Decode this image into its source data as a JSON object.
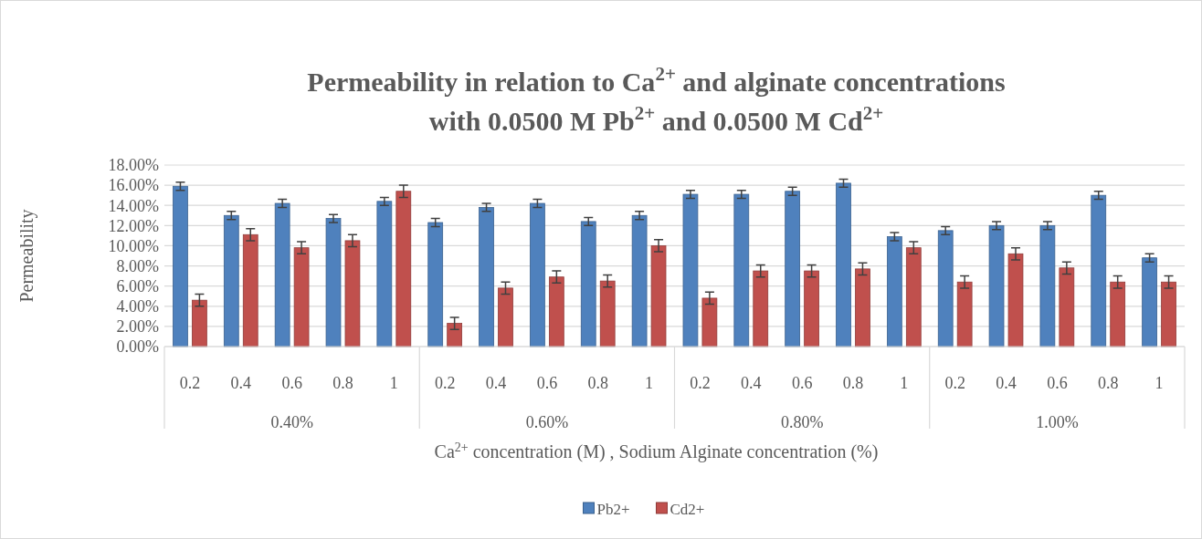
{
  "chart_data": {
    "type": "bar",
    "title": "Permeability in relation to Ca$^{2+}$ and alginate concentrations with 0.0500 M Pb$^{2+}$ and 0.0500 M Cd$^{2+}$",
    "xlabel": "Ca$^{2+}$ concentration (M) , Sodium Alginate concentration (%)",
    "ylabel": "Permeability",
    "categories": [
      "0.2",
      "0.4",
      "0.6",
      "0.8",
      "1",
      "0.2",
      "0.4",
      "0.6",
      "0.8",
      "1",
      "0.2",
      "0.4",
      "0.6",
      "0.8",
      "1",
      "0.2",
      "0.4",
      "0.6",
      "0.8",
      "1"
    ],
    "annotations": [
      "0.40%",
      "0.60%",
      "0.80%",
      "1.00%"
    ],
    "series": [
      {
        "name": "Pb2+",
        "color": "#4f81bd",
        "values": [
          15.9,
          13.0,
          14.2,
          12.7,
          14.4,
          12.3,
          13.8,
          14.2,
          12.4,
          13.0,
          15.1,
          15.1,
          15.4,
          16.2,
          10.9,
          11.5,
          12.0,
          12.0,
          15.0,
          8.8
        ],
        "errors": [
          0.4,
          0.4,
          0.4,
          0.4,
          0.4,
          0.4,
          0.4,
          0.4,
          0.4,
          0.4,
          0.4,
          0.4,
          0.4,
          0.4,
          0.4,
          0.4,
          0.4,
          0.4,
          0.4,
          0.4
        ]
      },
      {
        "name": "Cd2+",
        "color": "#c0504d",
        "values": [
          4.6,
          11.1,
          9.8,
          10.5,
          15.4,
          2.3,
          5.8,
          6.9,
          6.5,
          10.0,
          4.8,
          7.5,
          7.5,
          7.7,
          9.8,
          6.4,
          9.2,
          7.8,
          6.4,
          6.4
        ],
        "errors": [
          0.6,
          0.6,
          0.6,
          0.6,
          0.6,
          0.6,
          0.6,
          0.6,
          0.6,
          0.6,
          0.6,
          0.6,
          0.6,
          0.6,
          0.6,
          0.6,
          0.6,
          0.6,
          0.6,
          0.6
        ]
      }
    ],
    "ylim": [
      0,
      18
    ],
    "yticks": [
      {
        "value": 0,
        "label": "0.00%"
      },
      {
        "value": 2,
        "label": "2.00%"
      },
      {
        "value": 4,
        "label": "4.00%"
      },
      {
        "value": 6,
        "label": "6.00%"
      },
      {
        "value": 8,
        "label": "8.00%"
      },
      {
        "value": 10,
        "label": "10.00%"
      },
      {
        "value": 12,
        "label": "12.00%"
      },
      {
        "value": 14,
        "label": "14.00%"
      },
      {
        "value": 16,
        "label": "16.00%"
      },
      {
        "value": 18,
        "label": "18.00%"
      }
    ],
    "grid": "y",
    "legend": "bottom"
  }
}
